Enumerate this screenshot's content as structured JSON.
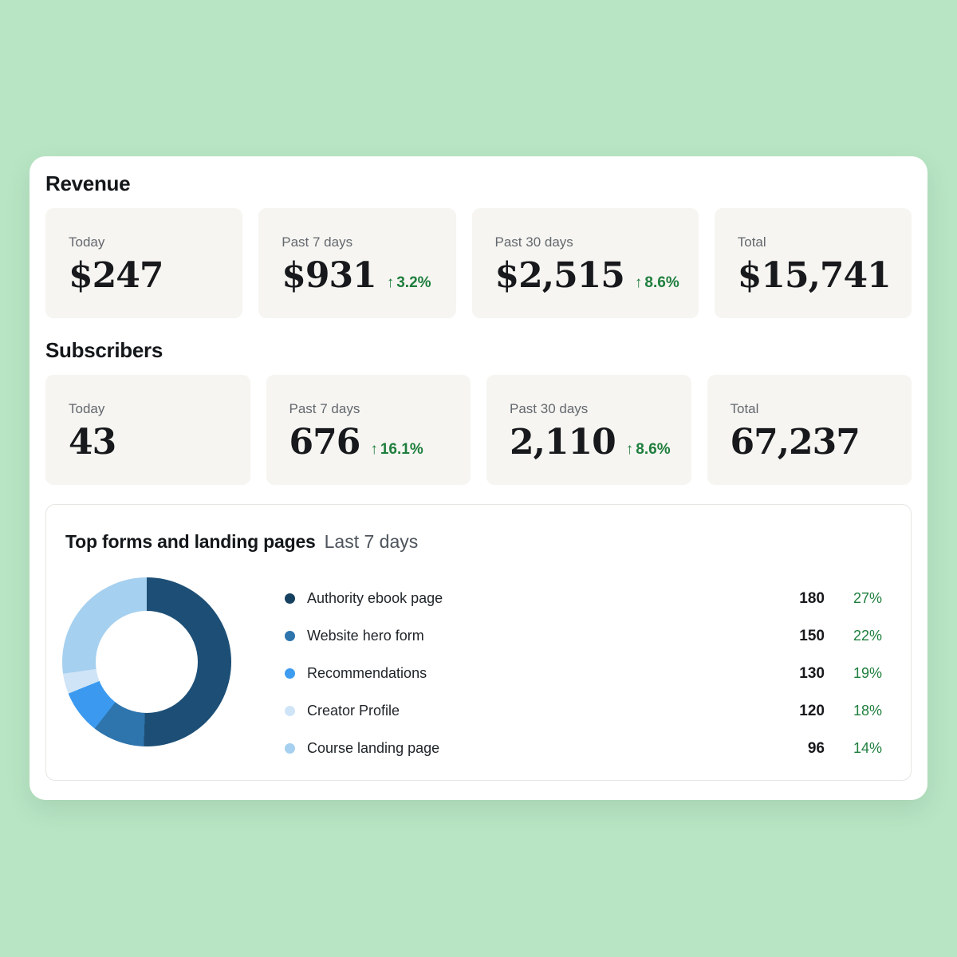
{
  "page": {
    "background_color": "#b8e5c4",
    "card_color": "#ffffff",
    "stat_card_color": "#f6f5f1",
    "accent_green": "#1e7e3d"
  },
  "icons": {
    "up_arrow": "↑"
  },
  "revenue": {
    "title": "Revenue",
    "cards": [
      {
        "label": "Today",
        "value": "$247"
      },
      {
        "label": "Past 7 days",
        "value": "$931",
        "delta": "3.2%"
      },
      {
        "label": "Past 30 days",
        "value": "$2,515",
        "delta": "8.6%"
      },
      {
        "label": "Total",
        "value": "$15,741"
      }
    ]
  },
  "subscribers": {
    "title": "Subscribers",
    "cards": [
      {
        "label": "Today",
        "value": "43"
      },
      {
        "label": "Past 7 days",
        "value": "676",
        "delta": "16.1%"
      },
      {
        "label": "Past 30 days",
        "value": "2,110",
        "delta": "8.6%"
      },
      {
        "label": "Total",
        "value": "67,237"
      }
    ]
  },
  "top_forms": {
    "title": "Top forms and landing pages",
    "subtitle": "Last 7 days",
    "rows": [
      {
        "label": "Authority ebook page",
        "count": "180",
        "percent": "27%",
        "color": "#16405f"
      },
      {
        "label": "Website hero form",
        "count": "150",
        "percent": "22%",
        "color": "#2e74ad"
      },
      {
        "label": "Recommendations",
        "count": "130",
        "percent": "19%",
        "color": "#3d9cf0"
      },
      {
        "label": "Creator Profile",
        "count": "120",
        "percent": "18%",
        "color": "#cfe4f7"
      },
      {
        "label": "Course landing page",
        "count": "96",
        "percent": "14%",
        "color": "#a6d0ef"
      }
    ]
  },
  "chart_data": {
    "type": "pie",
    "donut": true,
    "title": "Top forms and landing pages",
    "subtitle": "Last 7 days",
    "legend_position": "right",
    "series": [
      {
        "name": "Authority ebook page",
        "value": 180,
        "percent": 27,
        "color": "#1d4f76",
        "visual_degrees": [
          0,
          182
        ]
      },
      {
        "name": "Website hero form",
        "value": 150,
        "percent": 22,
        "color": "#2e74ad",
        "visual_degrees": [
          182,
          218
        ]
      },
      {
        "name": "Recommendations",
        "value": 130,
        "percent": 19,
        "color": "#3b9af0",
        "visual_degrees": [
          218,
          248
        ]
      },
      {
        "name": "Creator Profile",
        "value": 120,
        "percent": 18,
        "color": "#cfe4f7",
        "visual_degrees": [
          248,
          262
        ]
      },
      {
        "name": "Course landing page",
        "value": 96,
        "percent": 14,
        "color": "#a6d0ef",
        "visual_degrees": [
          262,
          360
        ]
      }
    ]
  }
}
